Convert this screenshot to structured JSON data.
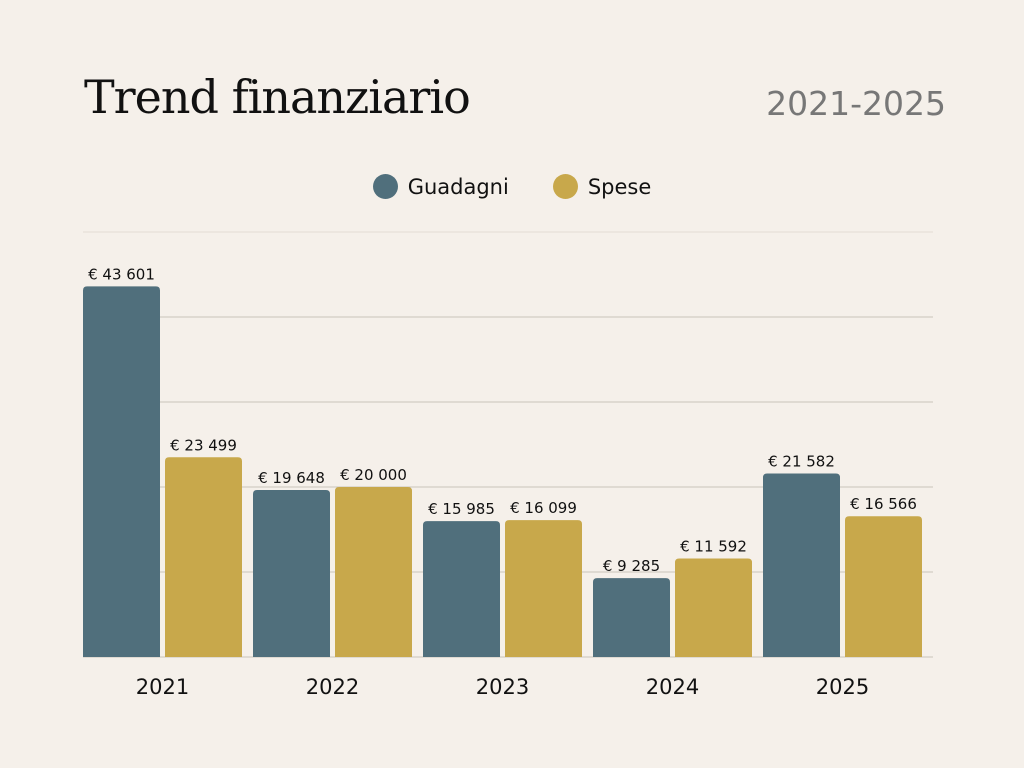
{
  "chart_data": {
    "type": "bar",
    "title": "Trend finanziario",
    "subtitle": "2021-2025",
    "categories": [
      "2021",
      "2022",
      "2023",
      "2024",
      "2025"
    ],
    "series": [
      {
        "name": "Guadagni",
        "color": "#506f7c",
        "values": [
          43601,
          19648,
          15985,
          9285,
          21582
        ],
        "labels": [
          "€ 43 601",
          "€ 19 648",
          "€ 15 985",
          "€ 9 285",
          "€ 21 582"
        ]
      },
      {
        "name": "Spese",
        "color": "#c8a84b",
        "values": [
          23499,
          20000,
          16099,
          11592,
          16566
        ],
        "labels": [
          "€ 23 499",
          "€ 20 000",
          "€ 16 099",
          "€ 11 592",
          "€ 16 566"
        ]
      }
    ],
    "xlabel": "",
    "ylabel": "",
    "ylim": [
      0,
      50000
    ],
    "grid": true,
    "grid_step": 10000,
    "legend_position": "top-center"
  }
}
